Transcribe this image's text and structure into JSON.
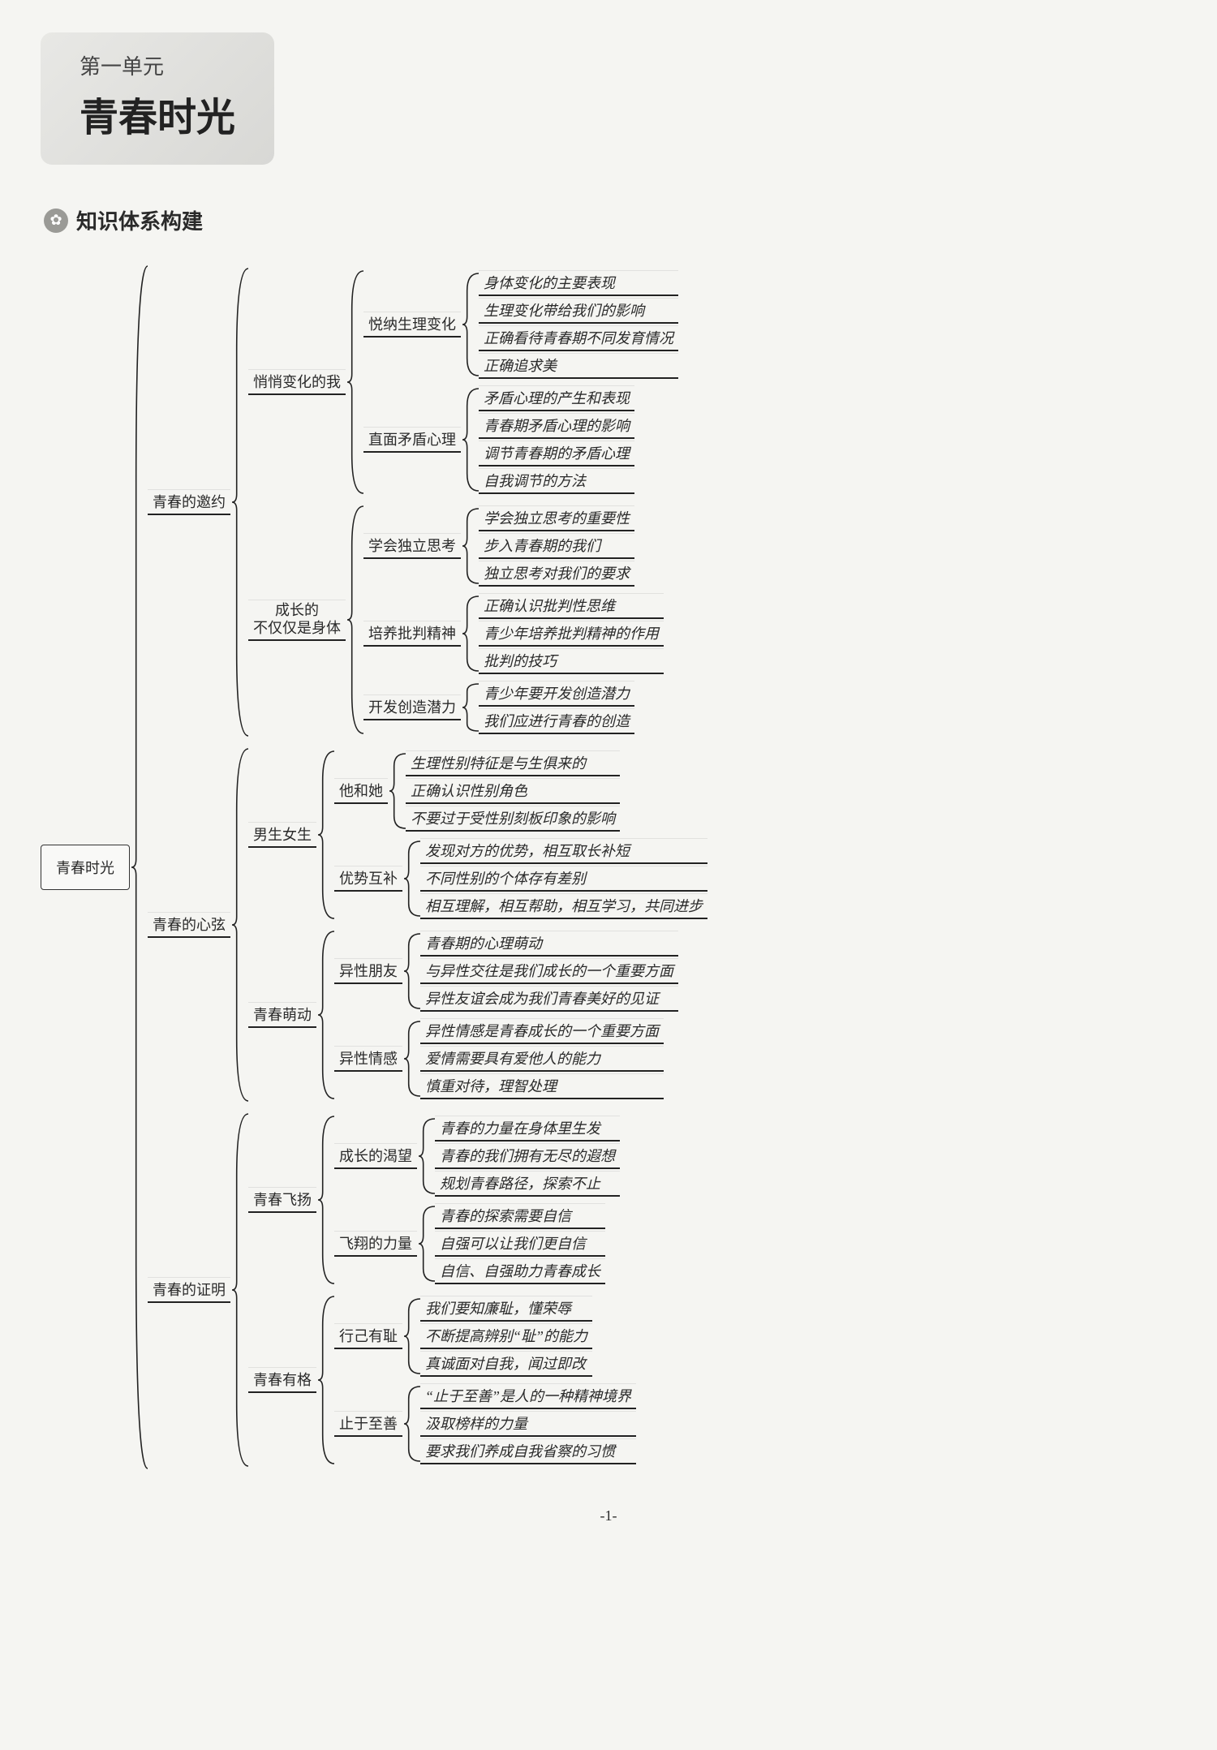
{
  "header": {
    "unit_label": "第一单元",
    "unit_title": "青春时光",
    "section_icon": "✿",
    "section_heading": "知识体系构建"
  },
  "mind": {
    "root": "青春时光",
    "l1": [
      {
        "label": "青春的邀约",
        "kids": [
          {
            "label": "悄悄变化的我",
            "kids": [
              {
                "label": "悦纳生理变化",
                "leaves": [
                  "身体变化的主要表现",
                  "生理变化带给我们的影响",
                  "正确看待青春期不同发育情况",
                  "正确追求美"
                ]
              },
              {
                "label": "直面矛盾心理",
                "leaves": [
                  "矛盾心理的产生和表现",
                  "青春期矛盾心理的影响",
                  "调节青春期的矛盾心理",
                  "自我调节的方法"
                ]
              }
            ]
          },
          {
            "label": "成长的\n不仅仅是身体",
            "kids": [
              {
                "label": "学会独立思考",
                "leaves": [
                  "学会独立思考的重要性",
                  "步入青春期的我们",
                  "独立思考对我们的要求"
                ]
              },
              {
                "label": "培养批判精神",
                "leaves": [
                  "正确认识批判性思维",
                  "青少年培养批判精神的作用",
                  "批判的技巧"
                ]
              },
              {
                "label": "开发创造潜力",
                "leaves": [
                  "青少年要开发创造潜力",
                  "我们应进行青春的创造"
                ]
              }
            ]
          }
        ]
      },
      {
        "label": "青春的心弦",
        "kids": [
          {
            "label": "男生女生",
            "kids": [
              {
                "label": "他和她",
                "leaves": [
                  "生理性别特征是与生俱来的",
                  "正确认识性别角色",
                  "不要过于受性别刻板印象的影响"
                ]
              },
              {
                "label": "优势互补",
                "leaves": [
                  "发现对方的优势，相互取长补短",
                  "不同性别的个体存有差别",
                  "相互理解，相互帮助，相互学习，共同进步"
                ]
              }
            ]
          },
          {
            "label": "青春萌动",
            "kids": [
              {
                "label": "异性朋友",
                "leaves": [
                  "青春期的心理萌动",
                  "与异性交往是我们成长的一个重要方面",
                  "异性友谊会成为我们青春美好的见证"
                ]
              },
              {
                "label": "异性情感",
                "leaves": [
                  "异性情感是青春成长的一个重要方面",
                  "爱情需要具有爱他人的能力",
                  "慎重对待，理智处理"
                ]
              }
            ]
          }
        ]
      },
      {
        "label": "青春的证明",
        "kids": [
          {
            "label": "青春飞扬",
            "kids": [
              {
                "label": "成长的渴望",
                "leaves": [
                  "青春的力量在身体里生发",
                  "青春的我们拥有无尽的遐想",
                  "规划青春路径，探索不止"
                ]
              },
              {
                "label": "飞翔的力量",
                "leaves": [
                  "青春的探索需要自信",
                  "自强可以让我们更自信",
                  "自信、自强助力青春成长"
                ]
              }
            ]
          },
          {
            "label": "青春有格",
            "kids": [
              {
                "label": "行己有耻",
                "leaves": [
                  "我们要知廉耻，懂荣辱",
                  "不断提高辨别“耻”的能力",
                  "真诚面对自我，闻过即改"
                ]
              },
              {
                "label": "止于至善",
                "leaves": [
                  "“止于至善”是人的一种精神境界",
                  "汲取榜样的力量",
                  "要求我们养成自我省察的习惯"
                ]
              }
            ]
          }
        ]
      }
    ]
  },
  "page_number": "-1-",
  "style": {
    "bg": "#f5f5f2",
    "border_color": "#222222",
    "node_underline": "#222222"
  }
}
